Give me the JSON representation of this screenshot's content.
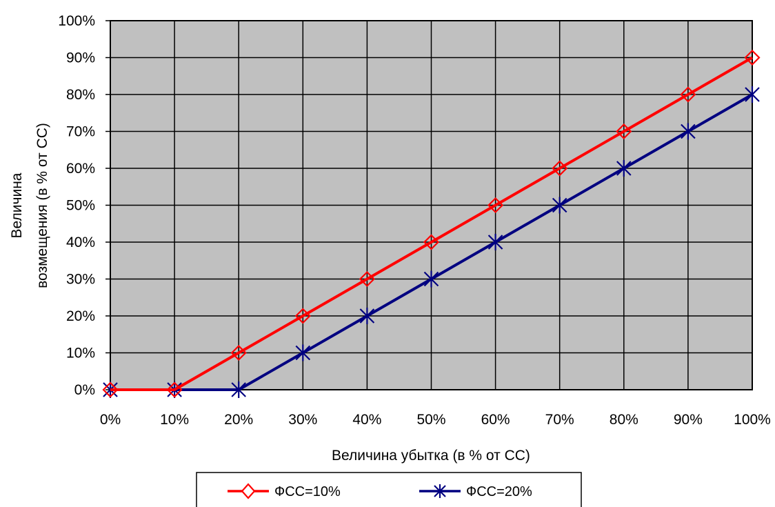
{
  "chart_data": {
    "type": "line",
    "title": "",
    "xlabel": "Величина убытка (в % от СС)",
    "ylabel_lines": [
      "Величина",
      "возмещения (в % от СС)"
    ],
    "x": [
      "0%",
      "10%",
      "20%",
      "30%",
      "40%",
      "50%",
      "60%",
      "70%",
      "80%",
      "90%",
      "100%"
    ],
    "y_ticks": [
      "0%",
      "10%",
      "20%",
      "30%",
      "40%",
      "50%",
      "60%",
      "70%",
      "80%",
      "90%",
      "100%"
    ],
    "ylim": [
      0,
      100
    ],
    "grid": true,
    "legend_position": "bottom",
    "plot_background": "#c0c0c0",
    "series": [
      {
        "name": "ФСС=10%",
        "color": "#ff0000",
        "marker": "diamond",
        "values": [
          0,
          0,
          10,
          20,
          30,
          40,
          50,
          60,
          70,
          80,
          90
        ]
      },
      {
        "name": "ФСС=20%",
        "color": "#000080",
        "marker": "asterisk",
        "values": [
          0,
          0,
          0,
          10,
          20,
          30,
          40,
          50,
          60,
          70,
          80
        ]
      }
    ]
  }
}
